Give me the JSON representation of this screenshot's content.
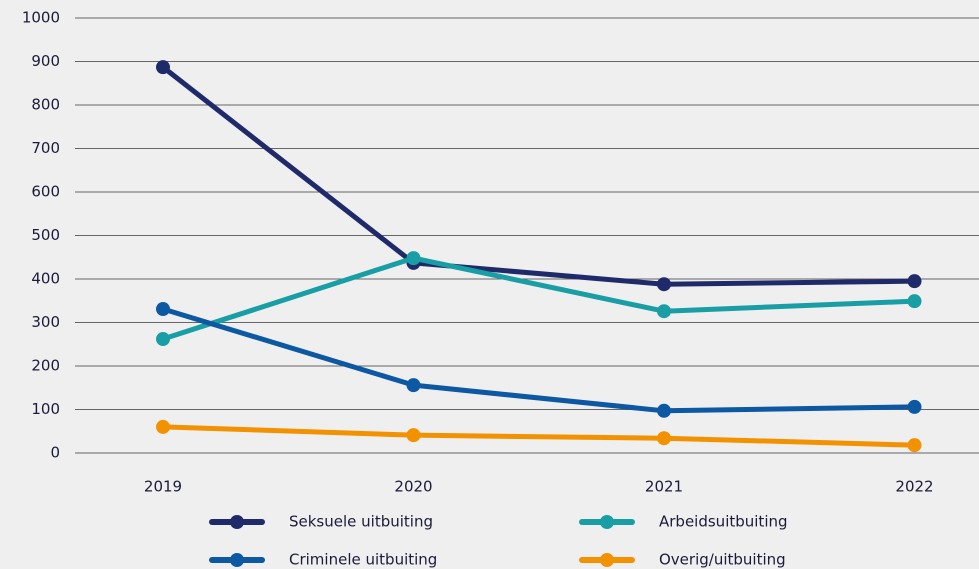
{
  "chart_data": {
    "type": "line",
    "categories": [
      "2019",
      "2020",
      "2021",
      "2022"
    ],
    "series": [
      {
        "name": "Seksuele uitbuiting",
        "color": "#1f2a6b",
        "values": [
          887,
          437,
          388,
          395
        ]
      },
      {
        "name": "Arbeidsuitbuiting",
        "color": "#1a9ea6",
        "values": [
          262,
          448,
          326,
          349
        ]
      },
      {
        "name": "Criminele uitbuiting",
        "color": "#0d58a3",
        "values": [
          331,
          156,
          97,
          106
        ]
      },
      {
        "name": "Overig/uitbuiting",
        "color": "#f39200",
        "values": [
          60,
          41,
          34,
          18
        ]
      }
    ],
    "ylim": [
      0,
      1000
    ],
    "yticks": [
      0,
      100,
      200,
      300,
      400,
      500,
      600,
      700,
      800,
      900,
      1000
    ],
    "grid": true,
    "legend": "bottom"
  }
}
